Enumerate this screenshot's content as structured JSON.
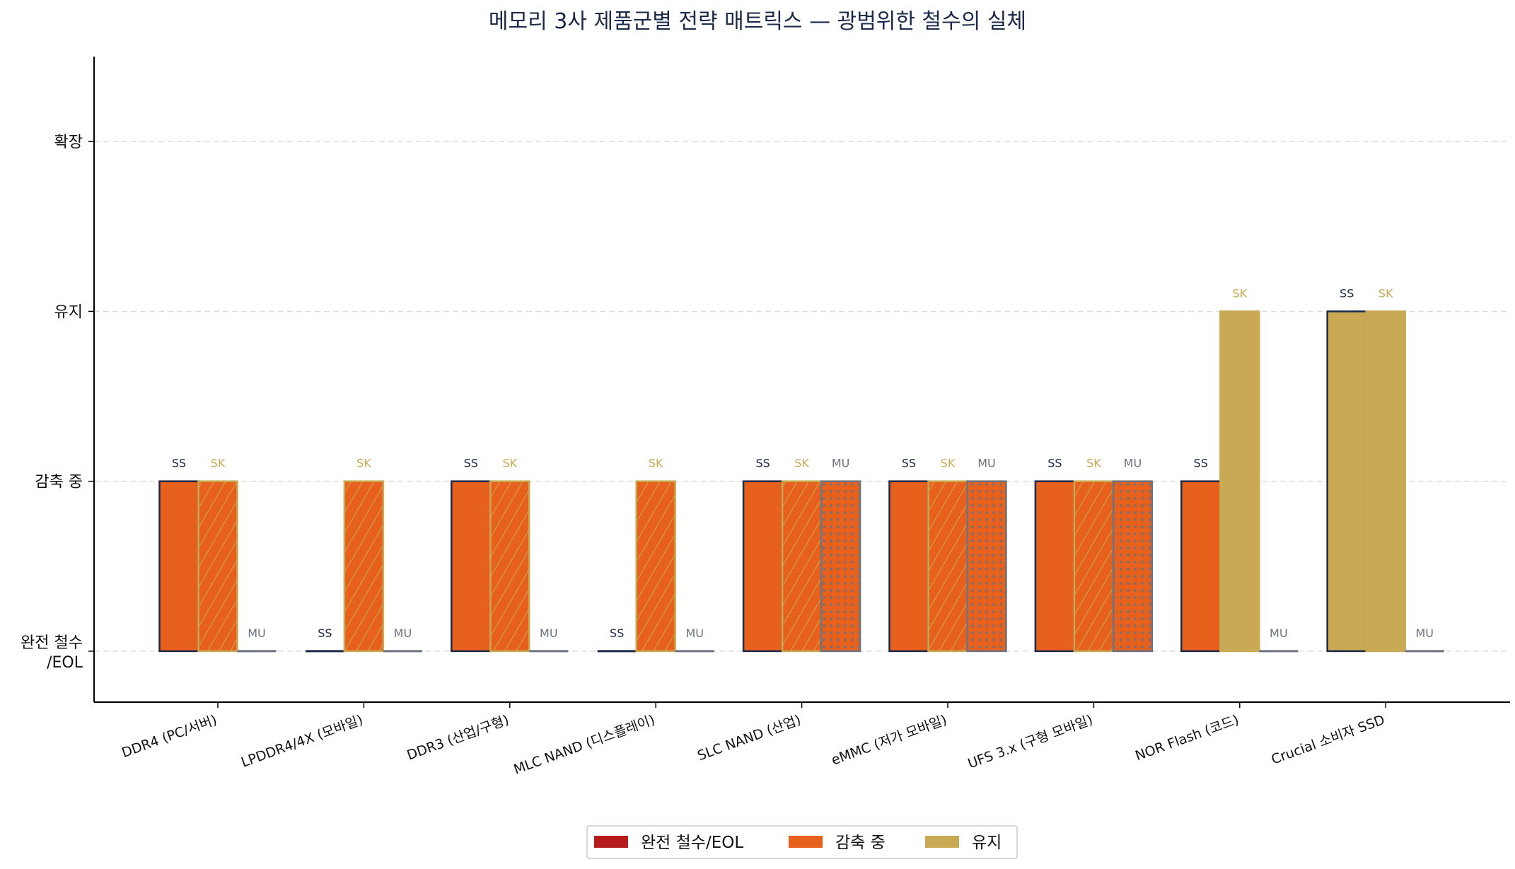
{
  "chart_data": {
    "type": "bar",
    "title": "메모리 3사 제품군별 전략 매트릭스 — 광범위한 철수의 실체",
    "xlabel": "",
    "ylabel": "",
    "categories": [
      "DDR4 (PC/서버)",
      "LPDDR4/4X (모바일)",
      "DDR3 (산업/구형)",
      "MLC NAND (디스플레이)",
      "SLC NAND (산업)",
      "eMMC (저가 모바일)",
      "UFS 3.x (구형 모바일)",
      "NOR Flash (코드)",
      "Crucial 소비자 SSD"
    ],
    "y_ticks": [
      {
        "value": 0,
        "label": "완전 철수\n/EOL"
      },
      {
        "value": 1,
        "label": "감축 중"
      },
      {
        "value": 2,
        "label": "유지"
      },
      {
        "value": 3,
        "label": "확장"
      }
    ],
    "ylim": [
      -0.3,
      3.5
    ],
    "grid": "horizontal dashed",
    "series": [
      {
        "name": "SS",
        "values": [
          1,
          0,
          1,
          0,
          1,
          1,
          1,
          1,
          2
        ],
        "edge_color": "#1B2A4A",
        "label_color": "#1B2A4A",
        "hatch": "none"
      },
      {
        "name": "SK",
        "values": [
          1,
          1,
          1,
          1,
          1,
          1,
          1,
          2,
          2
        ],
        "edge_color": "#C9A953",
        "label_color": "#C9A953",
        "hatch": "diagonal"
      },
      {
        "name": "MU",
        "values": [
          0,
          0,
          0,
          0,
          1,
          1,
          1,
          0,
          0
        ],
        "edge_color": "#6B7280",
        "label_color": "#6B7280",
        "hatch": "dots"
      }
    ],
    "status_colors": {
      "0": "#B71C1C",
      "1": "#E8611C",
      "2": "#C9A953",
      "3": "#2E7D32"
    },
    "legend": {
      "position": "bottom-center",
      "items": [
        {
          "label": "완전 철수/EOL",
          "color": "#B71C1C"
        },
        {
          "label": "감축 중",
          "color": "#E8611C"
        },
        {
          "label": "유지",
          "color": "#C9A953"
        }
      ]
    }
  }
}
